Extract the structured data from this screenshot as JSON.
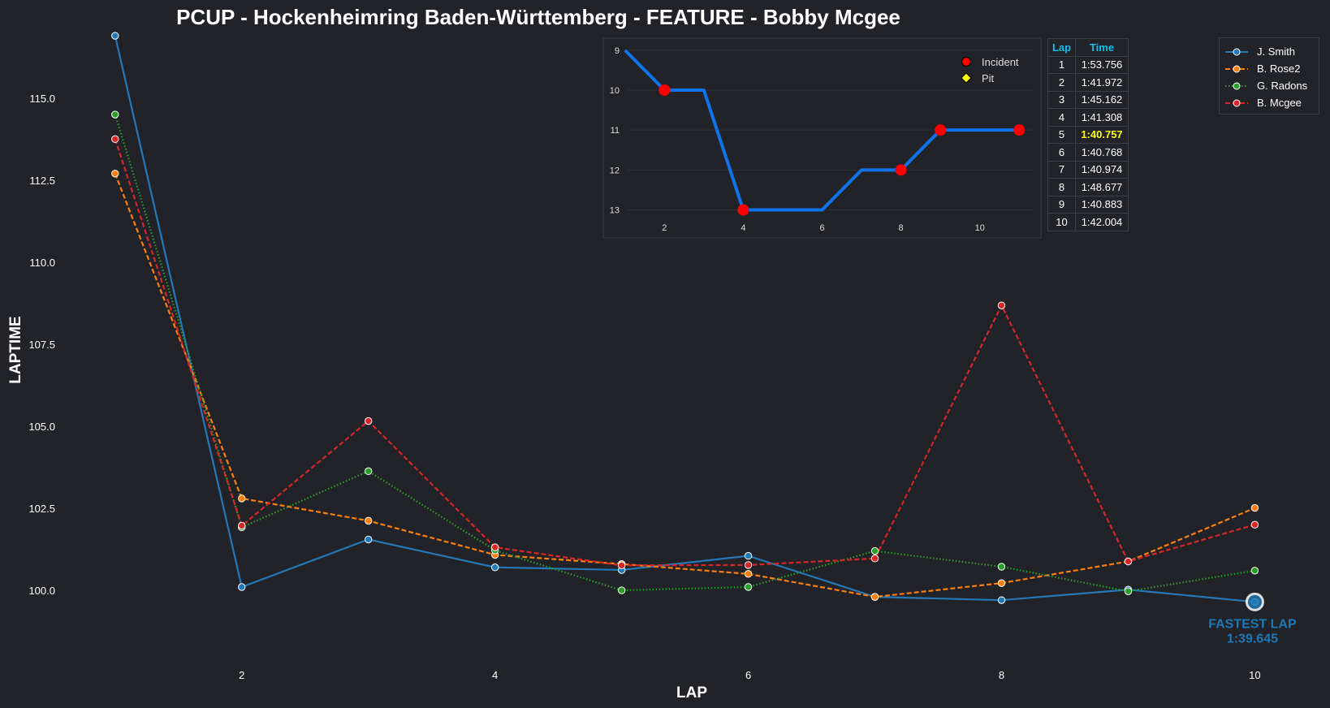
{
  "chart_data": [
    {
      "type": "line",
      "title": "PCUP - Hockenheimring Baden-Württemberg - FEATURE - Bobby Mcgee",
      "xlabel": "LAP",
      "ylabel": "LAPTIME",
      "x": [
        1,
        2,
        3,
        4,
        5,
        6,
        7,
        8,
        9,
        10
      ],
      "xticks": [
        2,
        4,
        6,
        8,
        10
      ],
      "yticks": [
        100.0,
        102.5,
        105.0,
        107.5,
        110.0,
        112.5,
        115.0
      ],
      "xlim": [
        0.7,
        10.35
      ],
      "ylim": [
        97.7,
        117.0
      ],
      "grid": false,
      "legend_position": "top-right",
      "series": [
        {
          "name": "J. Smith",
          "color": "#2577b7",
          "style": "solid",
          "values": [
            116.9,
            100.1,
            101.55,
            100.7,
            100.62,
            101.05,
            99.8,
            99.7,
            100.02,
            99.645
          ]
        },
        {
          "name": "B. Rose2",
          "color": "#fa7f0e",
          "style": "dashed",
          "values": [
            112.7,
            102.8,
            102.12,
            101.08,
            100.8,
            100.5,
            99.8,
            100.22,
            100.88,
            102.51
          ]
        },
        {
          "name": "G. Radons",
          "color": "#2b9d2b",
          "style": "dotted",
          "values": [
            114.5,
            101.92,
            103.63,
            101.22,
            100.0,
            100.1,
            101.2,
            100.72,
            99.97,
            100.6
          ]
        },
        {
          "name": "B. Mcgee",
          "color": "#d42728",
          "style": "dashed",
          "values": [
            113.75,
            101.97,
            105.16,
            101.31,
            100.76,
            100.77,
            100.97,
            108.68,
            100.88,
            102.0
          ]
        }
      ],
      "annotation": {
        "label": "FASTEST LAP",
        "value": "1:39.645",
        "lap": 10,
        "laptime": 99.645,
        "color": "#1f77b4"
      }
    },
    {
      "type": "line",
      "title": "",
      "x": [
        1,
        2,
        3,
        4,
        5,
        6,
        7,
        8,
        9,
        10,
        11
      ],
      "values": [
        9,
        10,
        10,
        13,
        13,
        13,
        12,
        12,
        11,
        11,
        11
      ],
      "xticks": [
        2,
        4,
        6,
        8,
        10
      ],
      "yticks": [
        9,
        10,
        11,
        12,
        13
      ],
      "xlim": [
        0.45,
        11.55
      ],
      "ylim": [
        13.7,
        8.7
      ],
      "y_inverted": true,
      "color": "#1173ea",
      "incident_laps": [
        2,
        4,
        8,
        9,
        11
      ],
      "pit_laps": [],
      "legend": [
        {
          "label": "Incident",
          "marker": "circle",
          "color": "#ff0000"
        },
        {
          "label": "Pit",
          "marker": "diamond",
          "color": "#ffff00"
        }
      ],
      "legend_position": "top-right"
    }
  ],
  "lap_table": {
    "headers": [
      "Lap",
      "Time"
    ],
    "rows": [
      {
        "lap": "1",
        "time": "1:53.756"
      },
      {
        "lap": "2",
        "time": "1:41.972"
      },
      {
        "lap": "3",
        "time": "1:45.162"
      },
      {
        "lap": "4",
        "time": "1:41.308"
      },
      {
        "lap": "5",
        "time": "1:40.757",
        "fastest": true
      },
      {
        "lap": "6",
        "time": "1:40.768"
      },
      {
        "lap": "7",
        "time": "1:40.974"
      },
      {
        "lap": "8",
        "time": "1:48.677"
      },
      {
        "lap": "9",
        "time": "1:40.883"
      },
      {
        "lap": "10",
        "time": "1:42.004"
      }
    ],
    "header_color": "#10c0f0",
    "fastest_color": "#ffff00"
  }
}
